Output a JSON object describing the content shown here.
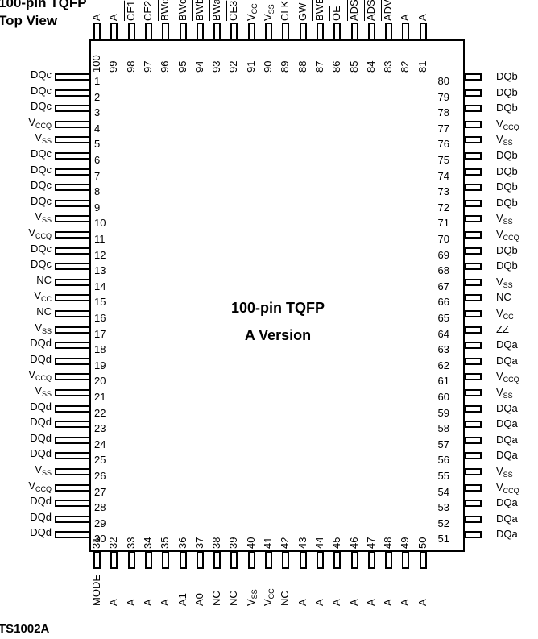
{
  "title_line1": "100-pin TQFP",
  "title_line2": "Top View",
  "center_line1": "100-pin TQFP",
  "center_line2": "A Version",
  "footer": "TS1002A",
  "left_pins": [
    {
      "num": "1",
      "name": "DQc"
    },
    {
      "num": "2",
      "name": "DQc"
    },
    {
      "num": "3",
      "name": "DQc"
    },
    {
      "num": "4",
      "name": "V",
      "sub": "CCQ"
    },
    {
      "num": "5",
      "name": "V",
      "sub": "SS"
    },
    {
      "num": "6",
      "name": "DQc"
    },
    {
      "num": "7",
      "name": "DQc"
    },
    {
      "num": "8",
      "name": "DQc"
    },
    {
      "num": "9",
      "name": "DQc"
    },
    {
      "num": "10",
      "name": "V",
      "sub": "SS"
    },
    {
      "num": "11",
      "name": "V",
      "sub": "CCQ"
    },
    {
      "num": "12",
      "name": "DQc"
    },
    {
      "num": "13",
      "name": "DQc"
    },
    {
      "num": "14",
      "name": "NC"
    },
    {
      "num": "15",
      "name": "V",
      "sub": "CC"
    },
    {
      "num": "16",
      "name": "NC"
    },
    {
      "num": "17",
      "name": "V",
      "sub": "SS"
    },
    {
      "num": "18",
      "name": "DQd"
    },
    {
      "num": "19",
      "name": "DQd"
    },
    {
      "num": "20",
      "name": "V",
      "sub": "CCQ"
    },
    {
      "num": "21",
      "name": "V",
      "sub": "SS"
    },
    {
      "num": "22",
      "name": "DQd"
    },
    {
      "num": "23",
      "name": "DQd"
    },
    {
      "num": "24",
      "name": "DQd"
    },
    {
      "num": "25",
      "name": "DQd"
    },
    {
      "num": "26",
      "name": "V",
      "sub": "SS"
    },
    {
      "num": "27",
      "name": "V",
      "sub": "CCQ"
    },
    {
      "num": "28",
      "name": "DQd"
    },
    {
      "num": "29",
      "name": "DQd"
    },
    {
      "num": "30",
      "name": "DQd"
    }
  ],
  "right_pins": [
    {
      "num": "80",
      "name": "DQb"
    },
    {
      "num": "79",
      "name": "DQb"
    },
    {
      "num": "78",
      "name": "DQb"
    },
    {
      "num": "77",
      "name": "V",
      "sub": "CCQ"
    },
    {
      "num": "76",
      "name": "V",
      "sub": "SS"
    },
    {
      "num": "75",
      "name": "DQb"
    },
    {
      "num": "74",
      "name": "DQb"
    },
    {
      "num": "73",
      "name": "DQb"
    },
    {
      "num": "72",
      "name": "DQb"
    },
    {
      "num": "71",
      "name": "V",
      "sub": "SS"
    },
    {
      "num": "70",
      "name": "V",
      "sub": "CCQ"
    },
    {
      "num": "69",
      "name": "DQb"
    },
    {
      "num": "68",
      "name": "DQb"
    },
    {
      "num": "67",
      "name": "V",
      "sub": "SS"
    },
    {
      "num": "66",
      "name": "NC"
    },
    {
      "num": "65",
      "name": "V",
      "sub": "CC"
    },
    {
      "num": "64",
      "name": "ZZ"
    },
    {
      "num": "63",
      "name": "DQa"
    },
    {
      "num": "62",
      "name": "DQa"
    },
    {
      "num": "61",
      "name": "V",
      "sub": "CCQ"
    },
    {
      "num": "60",
      "name": "V",
      "sub": "SS"
    },
    {
      "num": "59",
      "name": "DQa"
    },
    {
      "num": "58",
      "name": "DQa"
    },
    {
      "num": "57",
      "name": "DQa"
    },
    {
      "num": "56",
      "name": "DQa"
    },
    {
      "num": "55",
      "name": "V",
      "sub": "SS"
    },
    {
      "num": "54",
      "name": "V",
      "sub": "CCQ"
    },
    {
      "num": "53",
      "name": "DQa"
    },
    {
      "num": "52",
      "name": "DQa"
    },
    {
      "num": "51",
      "name": "DQa"
    }
  ],
  "top_pins": [
    {
      "num": "100",
      "name": "A"
    },
    {
      "num": "99",
      "name": "A"
    },
    {
      "num": "98",
      "name": "CE1",
      "bar": true
    },
    {
      "num": "97",
      "name": "CE2"
    },
    {
      "num": "96",
      "name": "BWd",
      "bar": true
    },
    {
      "num": "95",
      "name": "BWc",
      "bar": true
    },
    {
      "num": "94",
      "name": "BWb",
      "bar": true
    },
    {
      "num": "93",
      "name": "BWa",
      "bar": true
    },
    {
      "num": "92",
      "name": "CE3",
      "bar": true
    },
    {
      "num": "91",
      "name": "V",
      "sub": "CC"
    },
    {
      "num": "90",
      "name": "V",
      "sub": "SS"
    },
    {
      "num": "89",
      "name": "CLK"
    },
    {
      "num": "88",
      "name": "GW",
      "bar": true
    },
    {
      "num": "87",
      "name": "BWE",
      "bar": true
    },
    {
      "num": "86",
      "name": "OE",
      "bar": true
    },
    {
      "num": "85",
      "name": "ADSC",
      "bar": true
    },
    {
      "num": "84",
      "name": "ADSP",
      "bar": true
    },
    {
      "num": "83",
      "name": "ADV",
      "bar": true
    },
    {
      "num": "82",
      "name": "A"
    },
    {
      "num": "81",
      "name": "A"
    }
  ],
  "bottom_pins": [
    {
      "num": "31",
      "name": "MODE"
    },
    {
      "num": "32",
      "name": "A"
    },
    {
      "num": "33",
      "name": "A"
    },
    {
      "num": "34",
      "name": "A"
    },
    {
      "num": "35",
      "name": "A"
    },
    {
      "num": "36",
      "name": "A1"
    },
    {
      "num": "37",
      "name": "A0"
    },
    {
      "num": "38",
      "name": "NC"
    },
    {
      "num": "39",
      "name": "NC"
    },
    {
      "num": "40",
      "name": "V",
      "sub": "SS"
    },
    {
      "num": "41",
      "name": "V",
      "sub": "CC"
    },
    {
      "num": "42",
      "name": "NC"
    },
    {
      "num": "43",
      "name": "A"
    },
    {
      "num": "44",
      "name": "A"
    },
    {
      "num": "45",
      "name": "A"
    },
    {
      "num": "46",
      "name": "A"
    },
    {
      "num": "47",
      "name": "A"
    },
    {
      "num": "48",
      "name": "A"
    },
    {
      "num": "49",
      "name": "A"
    },
    {
      "num": "50",
      "name": "A"
    }
  ]
}
